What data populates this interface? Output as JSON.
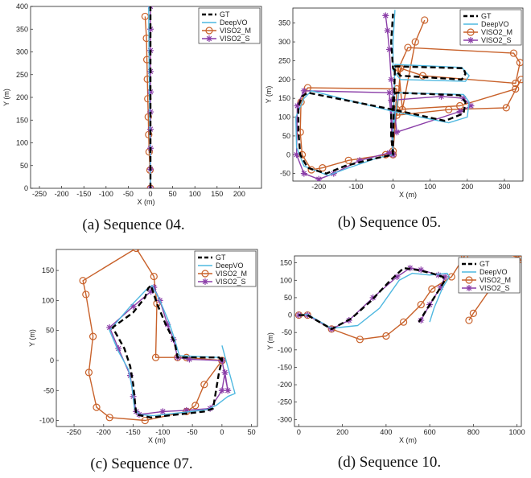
{
  "figure": {
    "legend_names": [
      "GT",
      "DeepVO",
      "VISO2_M",
      "VISO2_S"
    ],
    "colors": {
      "GT": "#000000",
      "DeepVO": "#4fb8e0",
      "VISO2_M": "#c8612a",
      "VISO2_S": "#8b3fa8"
    }
  },
  "chart_data": [
    {
      "type": "line",
      "caption": "(a) Sequence 04.",
      "xlabel": "X (m)",
      "ylabel": "Y (m)",
      "xlim": [
        -270,
        250
      ],
      "ylim": [
        0,
        400
      ],
      "xticks": [
        -250,
        -200,
        -150,
        -100,
        -50,
        0,
        50,
        100,
        150,
        200
      ],
      "yticks": [
        0,
        50,
        100,
        150,
        200,
        250,
        300,
        350,
        400
      ],
      "legend": "top-right",
      "series": [
        {
          "name": "GT",
          "x": [
            0,
            0,
            0,
            0
          ],
          "y": [
            0,
            100,
            250,
            400
          ]
        },
        {
          "name": "DeepVO",
          "x": [
            0,
            -1,
            -3,
            -4
          ],
          "y": [
            0,
            100,
            250,
            400
          ]
        },
        {
          "name": "VISO2_M",
          "x": [
            0,
            -1,
            -3,
            -4,
            -5,
            -6,
            -7,
            -8,
            -9,
            -12
          ],
          "y": [
            0,
            40,
            80,
            118,
            157,
            197,
            240,
            283,
            330,
            378
          ]
        },
        {
          "name": "VISO2_S",
          "x": [
            0,
            0,
            0,
            0,
            0,
            0,
            0,
            0,
            0,
            0
          ],
          "y": [
            0,
            42,
            88,
            130,
            168,
            212,
            257,
            303,
            350,
            400
          ]
        }
      ]
    },
    {
      "type": "line",
      "caption": "(b) Sequence 05.",
      "xlabel": "X (m)",
      "ylabel": "Y (m)",
      "xlim": [
        -270,
        350
      ],
      "ylim": [
        -70,
        390
      ],
      "xticks": [
        -200,
        -100,
        0,
        100,
        200,
        300
      ],
      "yticks": [
        -50,
        0,
        50,
        100,
        150,
        200,
        250,
        300,
        350
      ],
      "legend": "top-right",
      "series": [
        {
          "name": "GT",
          "x": [
            0,
            -5,
            -5,
            0,
            0,
            10,
            180,
            195,
            190,
            140,
            0,
            -230,
            -245,
            -255,
            -255,
            -250,
            -230,
            -180,
            -130,
            -50,
            0,
            0,
            5,
            190,
            195,
            185,
            20,
            0,
            -5,
            0
          ],
          "y": [
            0,
            50,
            110,
            125,
            160,
            165,
            158,
            140,
            110,
            90,
            120,
            165,
            155,
            130,
            60,
            0,
            -35,
            -50,
            -30,
            -10,
            0,
            40,
            235,
            230,
            215,
            200,
            210,
            230,
            300,
            375
          ]
        },
        {
          "name": "DeepVO",
          "x": [
            0,
            -2,
            15,
            190,
            205,
            200,
            150,
            0,
            -220,
            -240,
            -262,
            -260,
            -240,
            -175,
            -120,
            -40,
            0,
            0,
            5,
            185,
            205,
            195,
            20,
            0,
            0,
            5
          ],
          "y": [
            0,
            55,
            165,
            160,
            140,
            100,
            85,
            115,
            170,
            150,
            100,
            20,
            -30,
            -55,
            -35,
            -8,
            0,
            60,
            240,
            232,
            210,
            195,
            200,
            225,
            300,
            385
          ]
        },
        {
          "name": "VISO2_M",
          "x": [
            0,
            10,
            -230,
            -248,
            -250,
            -245,
            -220,
            -190,
            -120,
            -20,
            0,
            10,
            180,
            330,
            345,
            305,
            150,
            10,
            20,
            80,
            330,
            342,
            325,
            40,
            15,
            25,
            60,
            85
          ],
          "y": [
            0,
            175,
            178,
            140,
            60,
            0,
            -40,
            -35,
            -15,
            0,
            10,
            120,
            130,
            175,
            200,
            125,
            120,
            105,
            230,
            210,
            190,
            245,
            270,
            285,
            230,
            120,
            300,
            358
          ]
        },
        {
          "name": "VISO2_S",
          "x": [
            0,
            -10,
            -240,
            -258,
            -260,
            -240,
            -200,
            -160,
            -90,
            -10,
            0,
            -5,
            130,
            190,
            210,
            180,
            10,
            -5,
            -10,
            -15,
            -20
          ],
          "y": [
            0,
            165,
            170,
            130,
            0,
            -50,
            -65,
            -50,
            -15,
            5,
            0,
            145,
            155,
            150,
            130,
            115,
            60,
            200,
            280,
            330,
            370
          ]
        }
      ]
    },
    {
      "type": "line",
      "caption": "(c) Sequence 07.",
      "xlabel": "X (m)",
      "ylabel": "Y (m)",
      "xlim": [
        -280,
        60
      ],
      "ylim": [
        -110,
        185
      ],
      "xticks": [
        -250,
        -200,
        -150,
        -100,
        -50,
        0,
        50
      ],
      "yticks": [
        -100,
        -50,
        0,
        50,
        100,
        150
      ],
      "legend": "top-right",
      "series": [
        {
          "name": "GT",
          "x": [
            0,
            -5,
            -75,
            -80,
            -95,
            -110,
            -120,
            -125,
            -130,
            -150,
            -185,
            -165,
            -155,
            -150,
            -145,
            -120,
            -30,
            -15,
            -10,
            -5,
            0,
            0
          ],
          "y": [
            0,
            5,
            5,
            30,
            60,
            95,
            125,
            120,
            105,
            80,
            55,
            20,
            -10,
            -40,
            -90,
            -95,
            -85,
            -80,
            -50,
            -20,
            0,
            5
          ]
        },
        {
          "name": "DeepVO",
          "x": [
            0,
            -5,
            -72,
            -80,
            -90,
            -105,
            -118,
            -128,
            -155,
            -190,
            -175,
            -158,
            -152,
            -148,
            -140,
            -115,
            -25,
            -10,
            10,
            22,
            0
          ],
          "y": [
            0,
            5,
            8,
            35,
            65,
            100,
            125,
            118,
            90,
            50,
            15,
            -15,
            -45,
            -80,
            -90,
            -92,
            -82,
            -75,
            -60,
            -55,
            25
          ]
        },
        {
          "name": "VISO2_M",
          "x": [
            0,
            -60,
            -75,
            -112,
            -110,
            -115,
            -145,
            -235,
            -230,
            -218,
            -225,
            -212,
            -190,
            -130,
            -60,
            -45,
            -30,
            0
          ],
          "y": [
            0,
            5,
            5,
            5,
            95,
            140,
            187,
            133,
            110,
            40,
            -20,
            -78,
            -95,
            -100,
            -85,
            -75,
            -40,
            0
          ]
        },
        {
          "name": "VISO2_S",
          "x": [
            0,
            -55,
            -75,
            -82,
            -92,
            -105,
            -115,
            -120,
            -150,
            -190,
            -175,
            -155,
            -150,
            -145,
            -140,
            -100,
            -60,
            -20,
            0,
            5,
            10,
            0
          ],
          "y": [
            0,
            2,
            5,
            35,
            60,
            100,
            122,
            115,
            90,
            55,
            20,
            -25,
            -60,
            -85,
            -90,
            -85,
            -83,
            -80,
            -50,
            -20,
            -50,
            0
          ]
        }
      ]
    },
    {
      "type": "line",
      "caption": "(d) Sequence 10.",
      "xlabel": "X (m)",
      "ylabel": "Y (m)",
      "xlim": [
        -20,
        1020
      ],
      "ylim": [
        -320,
        170
      ],
      "xticks": [
        0,
        200,
        400,
        600,
        800,
        1000
      ],
      "yticks": [
        -300,
        -250,
        -200,
        -150,
        -100,
        -50,
        0,
        50,
        100,
        150
      ],
      "legend": "top-right",
      "series": [
        {
          "name": "GT",
          "x": [
            0,
            40,
            150,
            240,
            330,
            420,
            480,
            540,
            610,
            660,
            670,
            640,
            600,
            560,
            550
          ],
          "y": [
            0,
            0,
            -40,
            -10,
            40,
            100,
            135,
            130,
            120,
            110,
            100,
            70,
            30,
            -10,
            -20
          ]
        },
        {
          "name": "DeepVO",
          "x": [
            0,
            40,
            150,
            270,
            370,
            460,
            520,
            600,
            680,
            690,
            660,
            620,
            600
          ],
          "y": [
            0,
            2,
            -38,
            -30,
            20,
            100,
            120,
            115,
            120,
            110,
            80,
            20,
            -20
          ]
        },
        {
          "name": "VISO2_M",
          "x": [
            0,
            40,
            150,
            280,
            400,
            480,
            560,
            610,
            700,
            760,
            850,
            1010,
            1015,
            900,
            800,
            780
          ],
          "y": [
            0,
            0,
            -40,
            -70,
            -60,
            -20,
            30,
            75,
            110,
            170,
            195,
            165,
            160,
            95,
            5,
            -15
          ]
        },
        {
          "name": "VISO2_S",
          "x": [
            0,
            40,
            150,
            230,
            340,
            450,
            510,
            560,
            640,
            670,
            650,
            600,
            560
          ],
          "y": [
            0,
            0,
            -40,
            -15,
            50,
            110,
            135,
            130,
            115,
            110,
            80,
            30,
            -15
          ]
        }
      ]
    }
  ]
}
